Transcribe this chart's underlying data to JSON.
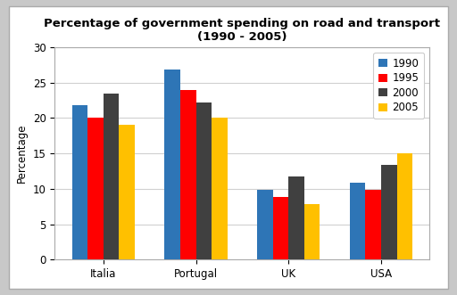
{
  "title_line1": "Percentage of government spending on road and transport",
  "title_line2": "(1990 - 2005)",
  "categories": [
    "Italia",
    "Portugal",
    "UK",
    "USA"
  ],
  "years": [
    "1990",
    "1995",
    "2000",
    "2005"
  ],
  "values": {
    "1990": [
      21.8,
      26.8,
      9.9,
      10.8
    ],
    "1995": [
      20.0,
      24.0,
      8.8,
      9.9
    ],
    "2000": [
      23.5,
      22.2,
      11.8,
      13.4
    ],
    "2005": [
      19.0,
      20.0,
      7.8,
      15.0
    ]
  },
  "bar_colors": {
    "1990": "#2E75B6",
    "1995": "#FF0000",
    "2000": "#404040",
    "2005": "#FFC000"
  },
  "ylabel": "Percentage",
  "ylim": [
    0,
    30
  ],
  "yticks": [
    0,
    5,
    10,
    15,
    20,
    25,
    30
  ],
  "fig_bg_color": "#ffffff",
  "chart_bg_color": "#ffffff",
  "outer_bg_color": "#c8c8c8",
  "title_fontsize": 9.5,
  "axis_label_fontsize": 8.5,
  "tick_fontsize": 8.5,
  "legend_fontsize": 8.5,
  "bar_width": 0.17
}
